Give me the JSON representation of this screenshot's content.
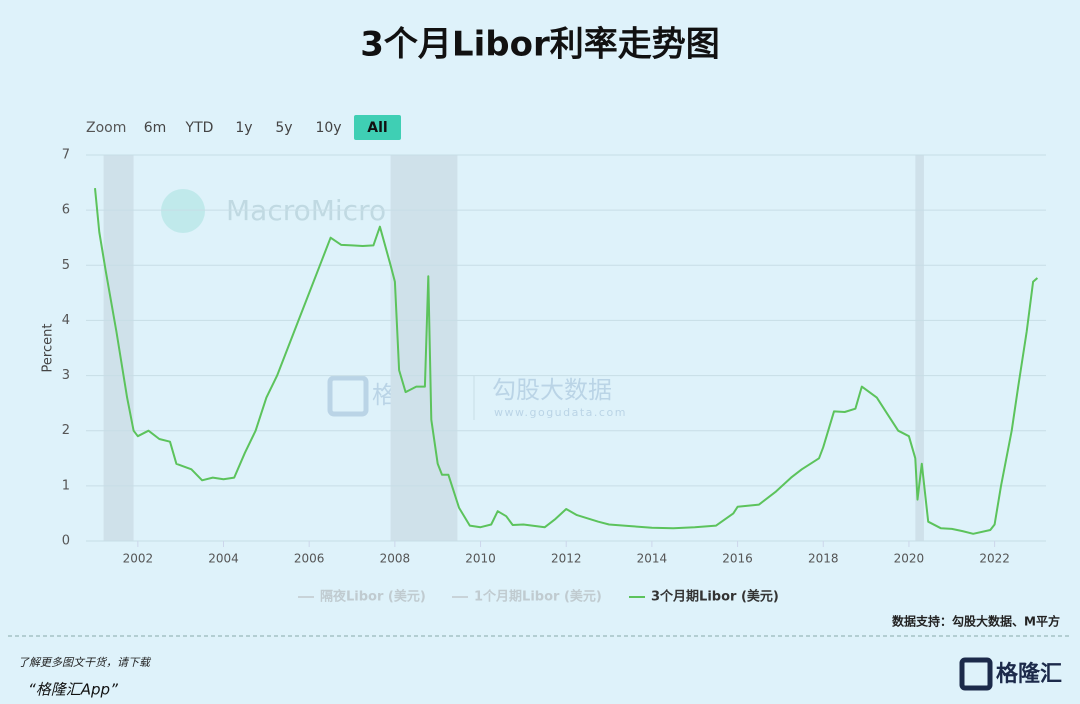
{
  "chart_data": {
    "type": "line",
    "title": "3个月Libor利率走势图",
    "range_buttons": [
      "Zoom",
      "6m",
      "YTD",
      "1y",
      "5y",
      "10y",
      "All"
    ],
    "active_range": "All",
    "y_label": "Percent",
    "x": [
      2001.0,
      2001.1,
      2001.25,
      2001.5,
      2001.75,
      2001.9,
      2002.0,
      2002.25,
      2002.5,
      2002.75,
      2002.9,
      2003.25,
      2003.5,
      2003.75,
      2004.0,
      2004.25,
      2004.5,
      2004.75,
      2005.0,
      2005.25,
      2005.5,
      2005.75,
      2006.0,
      2006.25,
      2006.5,
      2006.75,
      2007.0,
      2007.25,
      2007.5,
      2007.65,
      2007.9,
      2008.0,
      2008.1,
      2008.25,
      2008.5,
      2008.7,
      2008.78,
      2008.85,
      2009.0,
      2009.1,
      2009.25,
      2009.5,
      2009.75,
      2010.0,
      2010.25,
      2010.4,
      2010.6,
      2010.75,
      2011.0,
      2011.5,
      2011.75,
      2012.0,
      2012.25,
      2012.75,
      2013.0,
      2013.5,
      2014.0,
      2014.5,
      2015.0,
      2015.5,
      2015.9,
      2016.0,
      2016.5,
      2016.9,
      2017.25,
      2017.5,
      2017.9,
      2018.0,
      2018.25,
      2018.5,
      2018.75,
      2018.9,
      2019.25,
      2019.5,
      2019.75,
      2020.0,
      2020.15,
      2020.2,
      2020.3,
      2020.45,
      2020.75,
      2021.0,
      2021.25,
      2021.5,
      2021.9,
      2022.0,
      2022.15,
      2022.4,
      2022.55,
      2022.75,
      2022.9,
      2023.0
    ],
    "series": [
      {
        "name": "隔夜Libor (美元)",
        "color": "#c8d3d8",
        "visible": false
      },
      {
        "name": "1个月期Libor (美元)",
        "color": "#c8d3d8",
        "visible": false
      },
      {
        "name": "3个月期Libor (美元)",
        "color": "#5cc35c",
        "visible": true,
        "values": [
          6.4,
          5.6,
          4.9,
          3.8,
          2.6,
          2.0,
          1.9,
          2.0,
          1.85,
          1.8,
          1.4,
          1.3,
          1.1,
          1.15,
          1.12,
          1.15,
          1.6,
          2.0,
          2.6,
          3.0,
          3.5,
          4.0,
          4.5,
          5.0,
          5.5,
          5.37,
          5.36,
          5.35,
          5.36,
          5.7,
          5.0,
          4.7,
          3.1,
          2.7,
          2.8,
          2.8,
          4.8,
          2.2,
          1.4,
          1.2,
          1.2,
          0.6,
          0.28,
          0.25,
          0.3,
          0.54,
          0.45,
          0.29,
          0.3,
          0.25,
          0.4,
          0.58,
          0.47,
          0.35,
          0.3,
          0.27,
          0.24,
          0.23,
          0.25,
          0.28,
          0.5,
          0.62,
          0.66,
          0.9,
          1.15,
          1.3,
          1.5,
          1.7,
          2.35,
          2.34,
          2.4,
          2.8,
          2.6,
          2.3,
          2.0,
          1.9,
          1.5,
          0.75,
          1.4,
          0.35,
          0.23,
          0.22,
          0.18,
          0.13,
          0.2,
          0.3,
          1.0,
          2.0,
          2.8,
          3.8,
          4.7,
          4.77
        ]
      }
    ],
    "recessions": [
      [
        2001.2,
        2001.9
      ],
      [
        2007.9,
        2009.46
      ],
      [
        2020.15,
        2020.35
      ]
    ],
    "recession_color": "#cfe1ea",
    "xlim": [
      2001,
      2023.2
    ],
    "xticks": [
      2002,
      2004,
      2006,
      2008,
      2010,
      2012,
      2014,
      2016,
      2018,
      2020,
      2022
    ],
    "ylim": [
      0,
      7
    ],
    "yticks": [
      0,
      1,
      2,
      3,
      4,
      5,
      6,
      7
    ],
    "grid": true,
    "watermarks": [
      "MacroMicro",
      "格隆汇",
      "www.gogudata.com",
      "勾股大数据"
    ],
    "source": "数据支持：勾股大数据、M平方",
    "footer_line1": "了解更多图文干货，请下载",
    "footer_line2": "“格隆汇App”",
    "footer_logo": "格隆汇"
  }
}
